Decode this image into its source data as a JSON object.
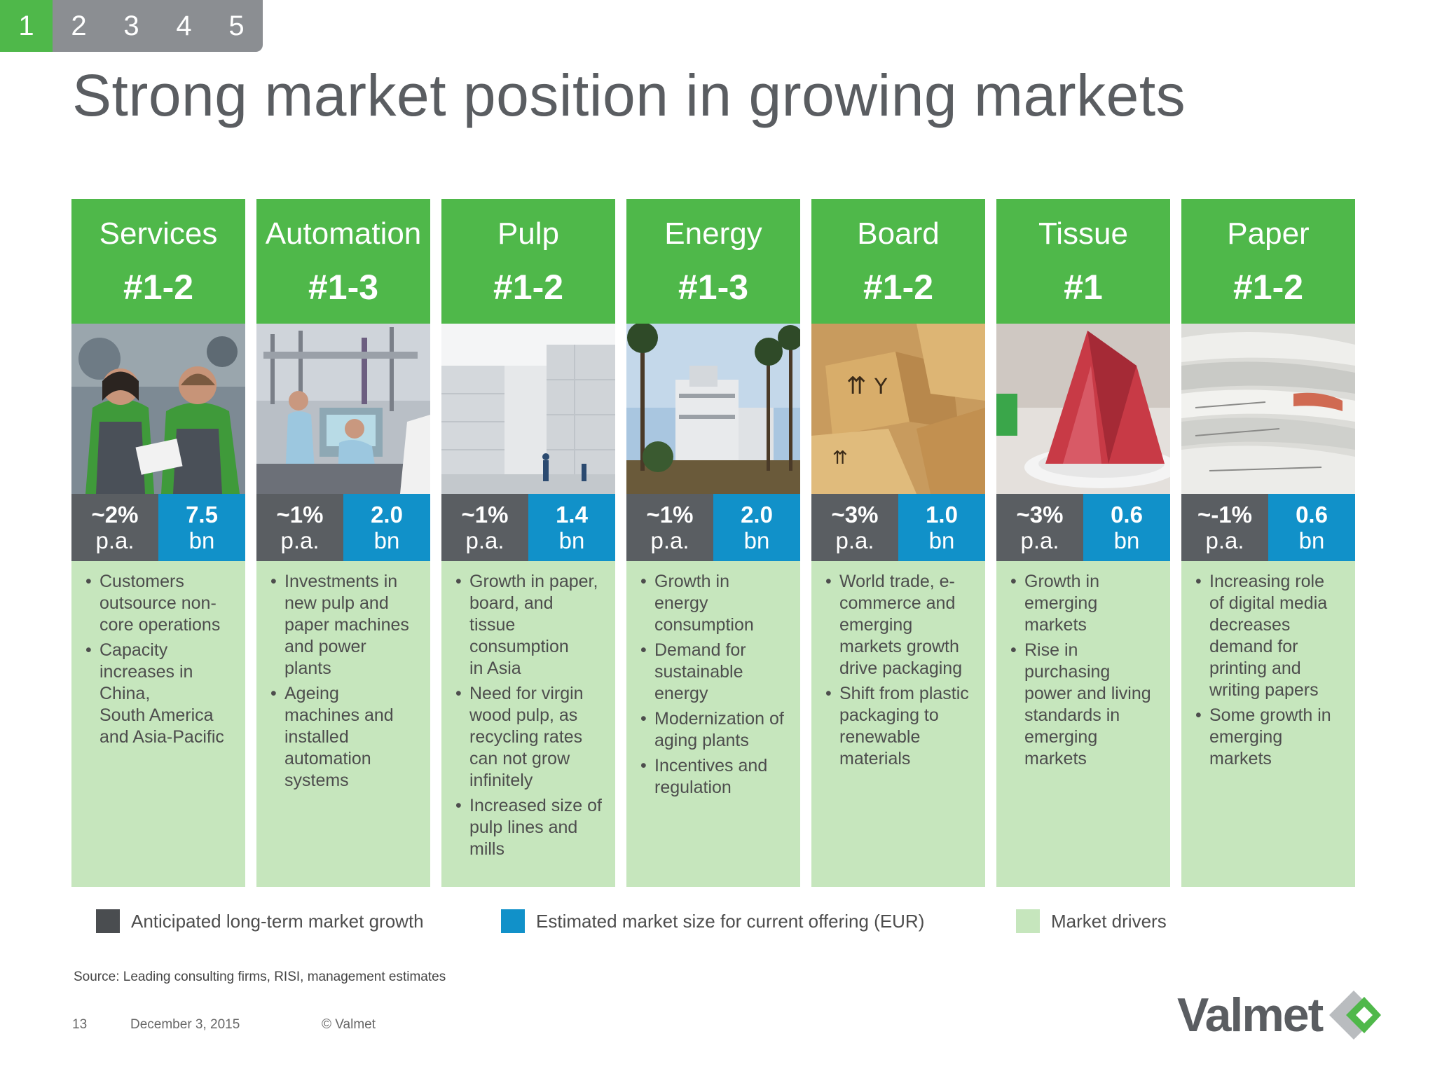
{
  "nav": {
    "tabs": [
      "1",
      "2",
      "3",
      "4",
      "5"
    ],
    "active_index": 0
  },
  "title": "Strong market position in growing markets",
  "columns": [
    {
      "name": "Services",
      "rank": "#1-2",
      "growth": [
        "~2%",
        "p.a."
      ],
      "size": [
        "7.5",
        "bn"
      ],
      "drivers": [
        "Customers outsource non-core operations",
        "Capacity increases in China,\nSouth America and Asia-Pacific"
      ]
    },
    {
      "name": "Automation",
      "rank": "#1-3",
      "growth": [
        "~1%",
        "p.a."
      ],
      "size": [
        "2.0",
        "bn"
      ],
      "drivers": [
        "Investments in new pulp and paper machines and power plants",
        "Ageing machines and installed automation systems"
      ]
    },
    {
      "name": "Pulp",
      "rank": "#1-2",
      "growth": [
        "~1%",
        "p.a."
      ],
      "size": [
        "1.4",
        "bn"
      ],
      "drivers": [
        "Growth in paper, board, and tissue consumption\nin Asia",
        "Need for virgin wood pulp, as recycling rates can not grow infinitely",
        "Increased size of pulp lines and mills"
      ]
    },
    {
      "name": "Energy",
      "rank": "#1-3",
      "growth": [
        "~1%",
        "p.a."
      ],
      "size": [
        "2.0",
        "bn"
      ],
      "drivers": [
        "Growth in energy consumption",
        "Demand for sustainable energy",
        "Modernization of aging plants",
        "Incentives and regulation"
      ]
    },
    {
      "name": "Board",
      "rank": "#1-2",
      "growth": [
        "~3%",
        "p.a."
      ],
      "size": [
        "1.0",
        "bn"
      ],
      "drivers": [
        "World trade, e-commerce and emerging markets growth drive packaging",
        "Shift from plastic packaging to renewable materials"
      ]
    },
    {
      "name": "Tissue",
      "rank": "#1",
      "growth": [
        "~3%",
        "p.a."
      ],
      "size": [
        "0.6",
        "bn"
      ],
      "drivers": [
        "Growth in emerging markets",
        "Rise in purchasing power and living standards in emerging markets"
      ]
    },
    {
      "name": "Paper",
      "rank": "#1-2",
      "growth": [
        "~-1%",
        "p.a."
      ],
      "size": [
        "0.6",
        "bn"
      ],
      "drivers": [
        "Increasing role of digital media decreases demand for printing and writing papers",
        "Some growth in emerging markets"
      ]
    }
  ],
  "legend": [
    {
      "label": "Anticipated long-term market growth",
      "color": "#4a4d50"
    },
    {
      "label": "Estimated market size for current offering (EUR)",
      "color": "#1191c9"
    },
    {
      "label": "Market drivers",
      "color": "#c6e6bd"
    }
  ],
  "source": "Source: Leading consulting firms, RISI, management estimates",
  "footer": {
    "page": "13",
    "date": "December 3, 2015",
    "copyright": "© Valmet"
  },
  "logo": {
    "text": "Valmet"
  },
  "colors": {
    "green": "#4fb84a",
    "gray": "#5a5e62",
    "blue": "#1191c9",
    "light_green": "#c6e6bd"
  }
}
